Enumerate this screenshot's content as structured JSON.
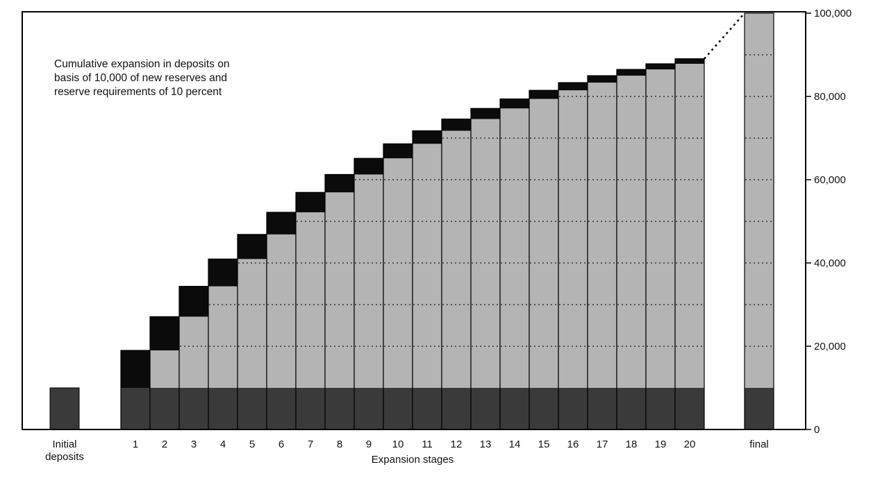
{
  "chart_data": {
    "type": "bar",
    "annotation": [
      "Cumulative expansion in deposits on",
      "basis of 10,000 of new reserves and",
      "reserve requirements of 10 percent"
    ],
    "xlabel": "Expansion stages",
    "ylabel": "",
    "ylim": [
      0,
      100000
    ],
    "yticks": [
      0,
      20000,
      40000,
      60000,
      80000,
      100000
    ],
    "ytick_labels": [
      "0",
      "20,000",
      "40,000",
      "60,000",
      "80,000",
      "100,000"
    ],
    "y_axis_side": "right",
    "initial": {
      "label_lines": [
        "Initial",
        "deposits"
      ],
      "value": 10000
    },
    "stages": [
      "1",
      "2",
      "3",
      "4",
      "5",
      "6",
      "7",
      "8",
      "9",
      "10",
      "11",
      "12",
      "13",
      "14",
      "15",
      "16",
      "17",
      "18",
      "19",
      "20"
    ],
    "final": {
      "label": "final",
      "value": 100000
    },
    "series": [
      {
        "name": "",
        "role": "initial deposits (dark base)",
        "values": [
          10000,
          10000,
          10000,
          10000,
          10000,
          10000,
          10000,
          10000,
          10000,
          10000,
          10000,
          10000,
          10000,
          10000,
          10000,
          10000,
          10000,
          10000,
          10000,
          10000
        ]
      },
      {
        "name": "",
        "role": "cumulative expansion (light gray)",
        "values": [
          0,
          9000,
          17100,
          24390,
          30951,
          36856,
          42170,
          46953,
          51258,
          55132,
          58619,
          61757,
          64581,
          67123,
          69411,
          71470,
          73323,
          74991,
          76491,
          77842
        ]
      },
      {
        "name": "",
        "role": "new deposits at stage (black cap)",
        "values": [
          9000,
          8100,
          7290,
          6561,
          5905,
          5314,
          4783,
          4305,
          3874,
          3487,
          3138,
          2824,
          2542,
          2288,
          2059,
          1853,
          1668,
          1501,
          1351,
          1216
        ]
      }
    ],
    "totals": [
      19000,
      27100,
      34390,
      40951,
      46856,
      52170,
      56953,
      61258,
      65132,
      68619,
      71757,
      74581,
      77123,
      79411,
      81470,
      83323,
      84991,
      86491,
      87842,
      89058
    ],
    "gridlines": "dotted horizontal lines inside bars",
    "colors": {
      "base": "#3a3a3a",
      "expansion": "#b4b4b4",
      "new": "#0b0b0b",
      "grid": "#1a1a1a",
      "frame": "#000000"
    }
  }
}
